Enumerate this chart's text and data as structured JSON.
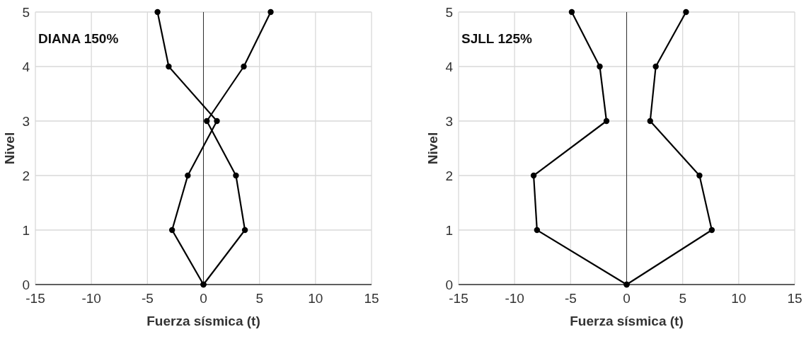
{
  "chart_data": [
    {
      "type": "line",
      "xlabel": "Fuerza sísmica (t)",
      "ylabel": "Nivel",
      "annotations": [
        "DIANA 150%"
      ],
      "xlim": [
        -15,
        15
      ],
      "xticks": [
        -15,
        -10,
        -5,
        0,
        5,
        10,
        15
      ],
      "ylim": [
        0,
        5
      ],
      "yticks": [
        0,
        1,
        2,
        3,
        4,
        5
      ],
      "grid": true,
      "marker": "circle",
      "line_style": "solid",
      "series": [
        {
          "color": "#000000",
          "x": [
            0,
            -2.8,
            -1.4,
            1.2,
            -3.1,
            -4.1
          ],
          "values": [
            0,
            1,
            2,
            3,
            4,
            5
          ]
        },
        {
          "color": "#000000",
          "x": [
            0,
            3.7,
            2.9,
            0.3,
            3.6,
            6.0
          ],
          "values": [
            0,
            1,
            2,
            3,
            4,
            5
          ]
        }
      ]
    },
    {
      "type": "line",
      "xlabel": "Fuerza sísmica (t)",
      "ylabel": "Nivel",
      "annotations": [
        "SJLL 125%"
      ],
      "xlim": [
        -15,
        15
      ],
      "xticks": [
        -15,
        -10,
        -5,
        0,
        5,
        10,
        15
      ],
      "ylim": [
        0,
        5
      ],
      "yticks": [
        0,
        1,
        2,
        3,
        4,
        5
      ],
      "grid": true,
      "marker": "circle",
      "line_style": "solid",
      "series": [
        {
          "color": "#000000",
          "x": [
            0,
            -8.0,
            -8.3,
            -1.8,
            -2.4,
            -4.9
          ],
          "values": [
            0,
            1,
            2,
            3,
            4,
            5
          ]
        },
        {
          "color": "#000000",
          "x": [
            0,
            7.6,
            6.5,
            2.1,
            2.6,
            5.3
          ],
          "values": [
            0,
            1,
            2,
            3,
            4,
            5
          ]
        }
      ]
    }
  ]
}
